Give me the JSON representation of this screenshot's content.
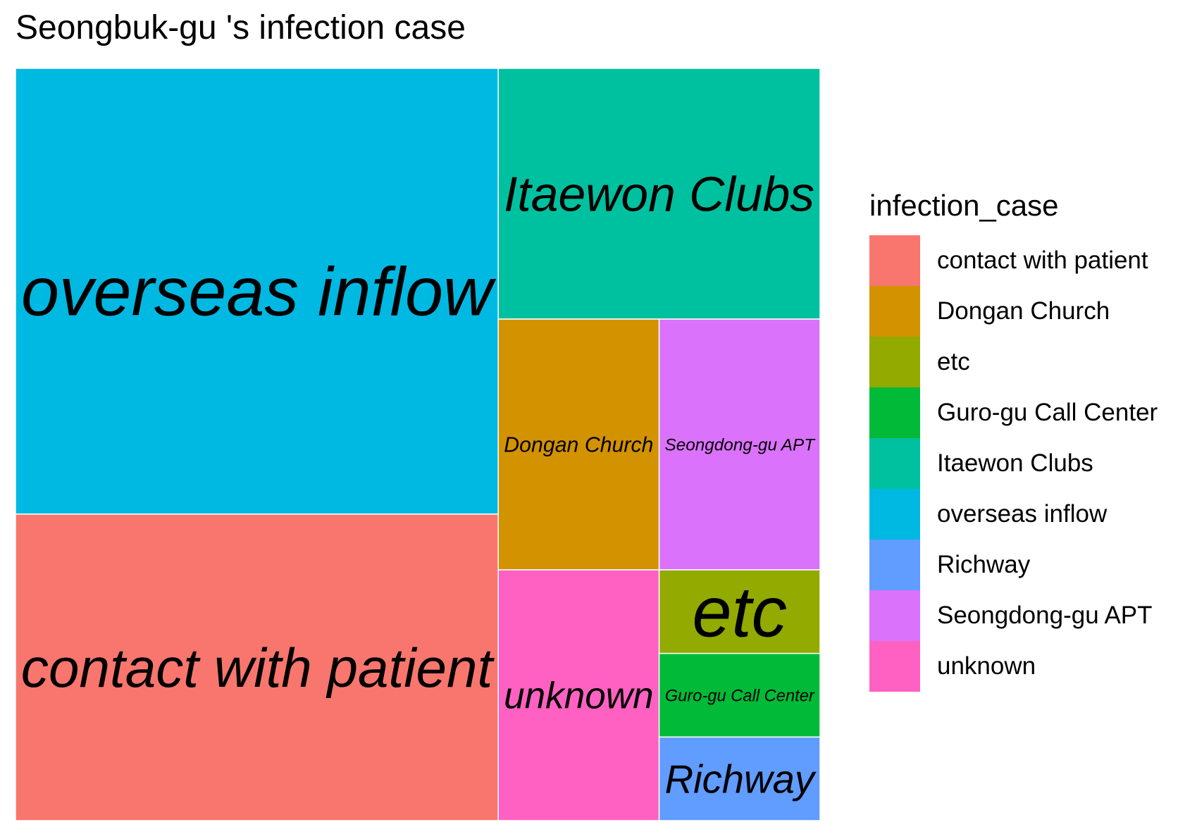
{
  "chart_data": {
    "type": "treemap",
    "title": "Seongbuk-gu 's infection case",
    "legend_title": "infection_case",
    "legend_position": "right",
    "categories": [
      "contact with patient",
      "Dongan Church",
      "etc",
      "Guro-gu Call Center",
      "Itaewon Clubs",
      "overseas inflow",
      "Richway",
      "Seongdong-gu APT",
      "unknown"
    ],
    "values": [
      11,
      3,
      1,
      1,
      6,
      16,
      1,
      3,
      3
    ],
    "colors": [
      "#F8766D",
      "#D39200",
      "#93AA00",
      "#00BA38",
      "#00C19F",
      "#00B9E3",
      "#619CFF",
      "#DB72FB",
      "#FF61C3"
    ]
  }
}
